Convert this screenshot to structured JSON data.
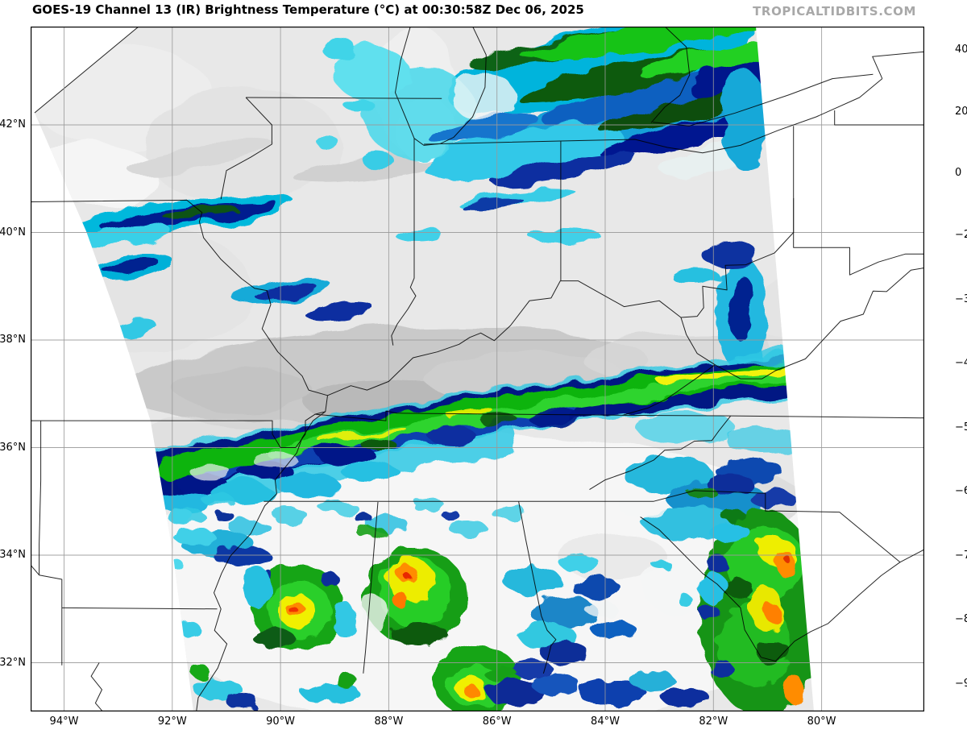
{
  "header": {
    "title": "GOES-19 Channel 13 (IR) Brightness Temperature (°C) at 00:30:58Z Dec 06, 2025",
    "watermark": "TROPICALTIDBITS.COM"
  },
  "axes": {
    "lat": [
      {
        "label": "42°N",
        "value": 42
      },
      {
        "label": "40°N",
        "value": 40
      },
      {
        "label": "38°N",
        "value": 38
      },
      {
        "label": "36°N",
        "value": 36
      },
      {
        "label": "34°N",
        "value": 34
      },
      {
        "label": "32°N",
        "value": 32
      }
    ],
    "lon": [
      {
        "label": "94°W",
        "value": -94
      },
      {
        "label": "92°W",
        "value": -92
      },
      {
        "label": "90°W",
        "value": -90
      },
      {
        "label": "88°W",
        "value": -88
      },
      {
        "label": "86°W",
        "value": -86
      },
      {
        "label": "84°W",
        "value": -84
      },
      {
        "label": "82°W",
        "value": -82
      },
      {
        "label": "80°W",
        "value": -80
      }
    ]
  },
  "colorbar": {
    "ticks": [
      {
        "label": "40",
        "value": 40
      },
      {
        "label": "20",
        "value": 20
      },
      {
        "label": "0",
        "value": 0
      },
      {
        "label": "−20",
        "value": -20
      },
      {
        "label": "−30",
        "value": -30
      },
      {
        "label": "−40",
        "value": -40
      },
      {
        "label": "−50",
        "value": -50
      },
      {
        "label": "−60",
        "value": -60
      },
      {
        "label": "−70",
        "value": -70
      },
      {
        "label": "−80",
        "value": -80
      },
      {
        "label": "−90",
        "value": -90
      }
    ],
    "palette": [
      {
        "v": 40,
        "c": "#000000"
      },
      {
        "v": 30,
        "c": "#2d2d2d"
      },
      {
        "v": 20,
        "c": "#575757"
      },
      {
        "v": 10,
        "c": "#828282"
      },
      {
        "v": 0,
        "c": "#aaaaaa"
      },
      {
        "v": -10,
        "c": "#d2d2d2"
      },
      {
        "v": -20,
        "c": "#f8f8f8"
      },
      {
        "v": -20,
        "c": "#00e8e8"
      },
      {
        "v": -24,
        "c": "#00a8e0"
      },
      {
        "v": -27,
        "c": "#1155cc"
      },
      {
        "v": -30,
        "c": "#000f8e"
      },
      {
        "v": -33,
        "c": "#03225c"
      },
      {
        "v": -35,
        "c": "#0a4a10"
      },
      {
        "v": -40,
        "c": "#00c800"
      },
      {
        "v": -45,
        "c": "#7ddc00"
      },
      {
        "v": -50,
        "c": "#ffff00"
      },
      {
        "v": -55,
        "c": "#ff9900"
      },
      {
        "v": -60,
        "c": "#ff0000"
      },
      {
        "v": -65,
        "c": "#8e0000"
      },
      {
        "v": -70,
        "c": "#000000"
      },
      {
        "v": -75,
        "c": "#8c8c8c"
      },
      {
        "v": -79,
        "c": "#ffffff"
      },
      {
        "v": -81,
        "c": "#ffc0ee"
      },
      {
        "v": -85,
        "c": "#dd1bdd"
      },
      {
        "v": -90,
        "c": "#7c0099"
      }
    ]
  },
  "colors": {
    "grid": "#999999",
    "state_border": "#000000",
    "frame": "#000000",
    "watermark": "#a8a8a8",
    "no_data": "#ffffff",
    "cloud_base_gray": "#e8e8e8"
  }
}
